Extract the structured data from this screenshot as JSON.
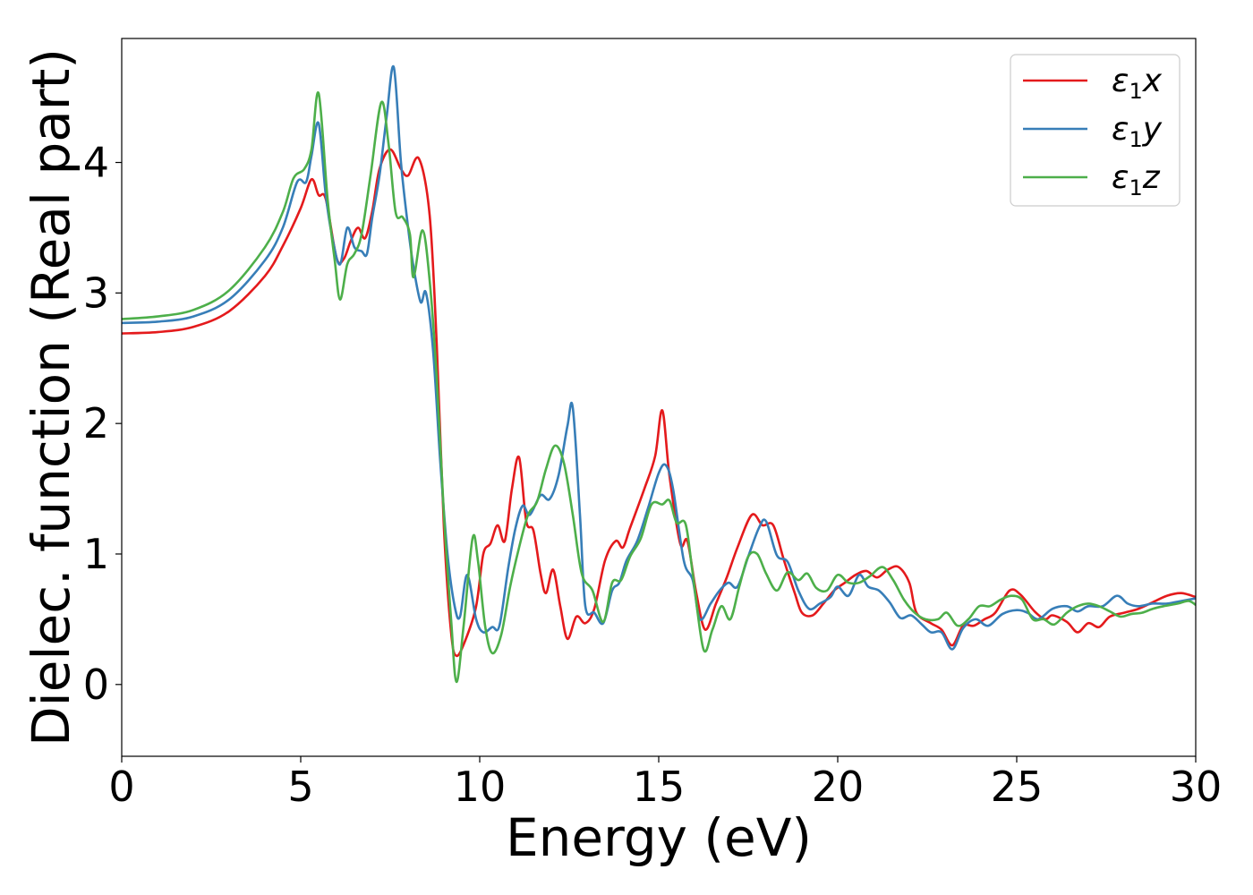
{
  "chart_data": {
    "type": "line",
    "title": "",
    "xlabel": "Energy (eV)",
    "ylabel": "Dielec. function (Real part)",
    "xlim": [
      0,
      30
    ],
    "ylim": [
      -0.55,
      4.95
    ],
    "xticks": [
      0,
      5,
      10,
      15,
      20,
      25,
      30
    ],
    "yticks": [
      0,
      1,
      2,
      3,
      4
    ],
    "grid": false,
    "legend": "top-right",
    "series": [
      {
        "name": "ε₁x",
        "legend_base": "ε",
        "legend_sub": "1",
        "legend_var": "x",
        "color": "#e41a1c",
        "points": [
          [
            0,
            2.69
          ],
          [
            1,
            2.7
          ],
          [
            2,
            2.74
          ],
          [
            3,
            2.86
          ],
          [
            4,
            3.13
          ],
          [
            4.5,
            3.36
          ],
          [
            5,
            3.65
          ],
          [
            5.3,
            3.87
          ],
          [
            5.5,
            3.75
          ],
          [
            5.7,
            3.72
          ],
          [
            6.0,
            3.27
          ],
          [
            6.2,
            3.26
          ],
          [
            6.4,
            3.4
          ],
          [
            6.6,
            3.5
          ],
          [
            6.8,
            3.42
          ],
          [
            7.0,
            3.63
          ],
          [
            7.2,
            3.95
          ],
          [
            7.5,
            4.1
          ],
          [
            7.8,
            3.95
          ],
          [
            8.0,
            3.9
          ],
          [
            8.3,
            4.03
          ],
          [
            8.6,
            3.6
          ],
          [
            8.8,
            2.6
          ],
          [
            9.0,
            1.2
          ],
          [
            9.2,
            0.4
          ],
          [
            9.35,
            0.22
          ],
          [
            9.6,
            0.34
          ],
          [
            9.9,
            0.6
          ],
          [
            10.1,
            1.0
          ],
          [
            10.3,
            1.08
          ],
          [
            10.5,
            1.22
          ],
          [
            10.7,
            1.1
          ],
          [
            10.9,
            1.5
          ],
          [
            11.1,
            1.74
          ],
          [
            11.3,
            1.25
          ],
          [
            11.5,
            1.18
          ],
          [
            11.7,
            0.85
          ],
          [
            11.85,
            0.7
          ],
          [
            12.05,
            0.88
          ],
          [
            12.25,
            0.6
          ],
          [
            12.45,
            0.35
          ],
          [
            12.7,
            0.52
          ],
          [
            12.95,
            0.47
          ],
          [
            13.2,
            0.58
          ],
          [
            13.5,
            0.95
          ],
          [
            13.8,
            1.1
          ],
          [
            14.0,
            1.05
          ],
          [
            14.2,
            1.2
          ],
          [
            14.6,
            1.5
          ],
          [
            14.9,
            1.75
          ],
          [
            15.1,
            2.1
          ],
          [
            15.3,
            1.6
          ],
          [
            15.6,
            1.08
          ],
          [
            15.8,
            1.1
          ],
          [
            16.05,
            0.7
          ],
          [
            16.3,
            0.42
          ],
          [
            16.6,
            0.62
          ],
          [
            16.9,
            0.82
          ],
          [
            17.2,
            1.05
          ],
          [
            17.6,
            1.3
          ],
          [
            17.9,
            1.22
          ],
          [
            18.2,
            1.22
          ],
          [
            18.5,
            0.95
          ],
          [
            18.8,
            0.7
          ],
          [
            19.0,
            0.55
          ],
          [
            19.3,
            0.53
          ],
          [
            19.6,
            0.62
          ],
          [
            19.9,
            0.72
          ],
          [
            20.2,
            0.78
          ],
          [
            20.5,
            0.84
          ],
          [
            20.8,
            0.87
          ],
          [
            21.1,
            0.82
          ],
          [
            21.4,
            0.88
          ],
          [
            21.7,
            0.9
          ],
          [
            22.0,
            0.78
          ],
          [
            22.2,
            0.55
          ],
          [
            22.6,
            0.47
          ],
          [
            22.9,
            0.42
          ],
          [
            23.2,
            0.3
          ],
          [
            23.5,
            0.45
          ],
          [
            23.8,
            0.45
          ],
          [
            24.1,
            0.5
          ],
          [
            24.4,
            0.55
          ],
          [
            24.8,
            0.72
          ],
          [
            25.1,
            0.69
          ],
          [
            25.5,
            0.56
          ],
          [
            25.8,
            0.5
          ],
          [
            26.0,
            0.53
          ],
          [
            26.4,
            0.48
          ],
          [
            26.7,
            0.4
          ],
          [
            27.0,
            0.47
          ],
          [
            27.3,
            0.44
          ],
          [
            27.6,
            0.52
          ],
          [
            28.0,
            0.55
          ],
          [
            28.4,
            0.58
          ],
          [
            28.8,
            0.63
          ],
          [
            29.2,
            0.68
          ],
          [
            29.6,
            0.7
          ],
          [
            30,
            0.67
          ]
        ]
      },
      {
        "name": "ε₁y",
        "legend_base": "ε",
        "legend_sub": "1",
        "legend_var": "y",
        "color": "#377eb8",
        "points": [
          [
            0,
            2.77
          ],
          [
            1,
            2.78
          ],
          [
            2,
            2.82
          ],
          [
            3,
            2.95
          ],
          [
            4,
            3.25
          ],
          [
            4.5,
            3.5
          ],
          [
            4.9,
            3.85
          ],
          [
            5.15,
            3.85
          ],
          [
            5.3,
            4.05
          ],
          [
            5.5,
            4.3
          ],
          [
            5.7,
            3.75
          ],
          [
            5.9,
            3.4
          ],
          [
            6.1,
            3.22
          ],
          [
            6.3,
            3.5
          ],
          [
            6.5,
            3.35
          ],
          [
            6.7,
            3.32
          ],
          [
            6.85,
            3.3
          ],
          [
            7.0,
            3.58
          ],
          [
            7.2,
            3.9
          ],
          [
            7.4,
            4.35
          ],
          [
            7.6,
            4.73
          ],
          [
            7.8,
            4.0
          ],
          [
            8.0,
            3.5
          ],
          [
            8.15,
            3.2
          ],
          [
            8.35,
            2.93
          ],
          [
            8.5,
            3.0
          ],
          [
            8.7,
            2.55
          ],
          [
            8.9,
            1.7
          ],
          [
            9.1,
            1.0
          ],
          [
            9.3,
            0.6
          ],
          [
            9.45,
            0.52
          ],
          [
            9.65,
            0.84
          ],
          [
            9.9,
            0.5
          ],
          [
            10.1,
            0.4
          ],
          [
            10.35,
            0.44
          ],
          [
            10.55,
            0.45
          ],
          [
            10.8,
            0.9
          ],
          [
            11.0,
            1.2
          ],
          [
            11.2,
            1.37
          ],
          [
            11.4,
            1.3
          ],
          [
            11.7,
            1.45
          ],
          [
            11.95,
            1.42
          ],
          [
            12.2,
            1.6
          ],
          [
            12.45,
            1.98
          ],
          [
            12.6,
            2.12
          ],
          [
            12.8,
            1.3
          ],
          [
            12.95,
            0.6
          ],
          [
            13.2,
            0.55
          ],
          [
            13.45,
            0.47
          ],
          [
            13.7,
            0.72
          ],
          [
            13.9,
            0.78
          ],
          [
            14.1,
            0.95
          ],
          [
            14.4,
            1.1
          ],
          [
            14.7,
            1.35
          ],
          [
            15.0,
            1.62
          ],
          [
            15.2,
            1.68
          ],
          [
            15.4,
            1.5
          ],
          [
            15.7,
            0.95
          ],
          [
            15.95,
            0.8
          ],
          [
            16.15,
            0.5
          ],
          [
            16.45,
            0.62
          ],
          [
            16.7,
            0.72
          ],
          [
            16.95,
            0.78
          ],
          [
            17.2,
            0.75
          ],
          [
            17.5,
            0.98
          ],
          [
            17.8,
            1.2
          ],
          [
            18.0,
            1.25
          ],
          [
            18.3,
            0.99
          ],
          [
            18.6,
            0.94
          ],
          [
            18.9,
            0.72
          ],
          [
            19.2,
            0.58
          ],
          [
            19.5,
            0.62
          ],
          [
            19.8,
            0.67
          ],
          [
            20.0,
            0.75
          ],
          [
            20.3,
            0.68
          ],
          [
            20.6,
            0.84
          ],
          [
            20.85,
            0.75
          ],
          [
            21.15,
            0.72
          ],
          [
            21.45,
            0.63
          ],
          [
            21.75,
            0.51
          ],
          [
            22.05,
            0.53
          ],
          [
            22.35,
            0.46
          ],
          [
            22.6,
            0.4
          ],
          [
            22.9,
            0.4
          ],
          [
            23.2,
            0.27
          ],
          [
            23.5,
            0.43
          ],
          [
            23.85,
            0.5
          ],
          [
            24.2,
            0.45
          ],
          [
            24.6,
            0.54
          ],
          [
            25.0,
            0.57
          ],
          [
            25.3,
            0.55
          ],
          [
            25.6,
            0.5
          ],
          [
            26.0,
            0.58
          ],
          [
            26.4,
            0.6
          ],
          [
            26.7,
            0.56
          ],
          [
            27.0,
            0.6
          ],
          [
            27.4,
            0.6
          ],
          [
            27.8,
            0.68
          ],
          [
            28.1,
            0.62
          ],
          [
            28.4,
            0.6
          ],
          [
            28.8,
            0.62
          ],
          [
            29.2,
            0.62
          ],
          [
            29.6,
            0.64
          ],
          [
            30,
            0.66
          ]
        ]
      },
      {
        "name": "ε₁z",
        "legend_base": "ε",
        "legend_sub": "1",
        "legend_var": "z",
        "color": "#4daf4a",
        "points": [
          [
            0,
            2.8
          ],
          [
            1,
            2.82
          ],
          [
            2,
            2.87
          ],
          [
            3,
            3.02
          ],
          [
            4,
            3.35
          ],
          [
            4.5,
            3.62
          ],
          [
            4.8,
            3.88
          ],
          [
            5.1,
            3.95
          ],
          [
            5.3,
            4.1
          ],
          [
            5.5,
            4.53
          ],
          [
            5.75,
            3.72
          ],
          [
            5.95,
            3.25
          ],
          [
            6.1,
            2.95
          ],
          [
            6.3,
            3.22
          ],
          [
            6.5,
            3.3
          ],
          [
            6.7,
            3.45
          ],
          [
            6.95,
            3.9
          ],
          [
            7.25,
            4.46
          ],
          [
            7.45,
            4.15
          ],
          [
            7.65,
            3.62
          ],
          [
            7.85,
            3.58
          ],
          [
            8.05,
            3.45
          ],
          [
            8.15,
            3.12
          ],
          [
            8.4,
            3.48
          ],
          [
            8.6,
            3.1
          ],
          [
            8.8,
            2.35
          ],
          [
            9.0,
            1.3
          ],
          [
            9.2,
            0.5
          ],
          [
            9.35,
            0.02
          ],
          [
            9.55,
            0.45
          ],
          [
            9.8,
            1.12
          ],
          [
            9.95,
            0.95
          ],
          [
            10.15,
            0.45
          ],
          [
            10.35,
            0.24
          ],
          [
            10.6,
            0.38
          ],
          [
            10.85,
            0.75
          ],
          [
            11.1,
            1.05
          ],
          [
            11.35,
            1.3
          ],
          [
            11.6,
            1.4
          ],
          [
            11.85,
            1.65
          ],
          [
            12.1,
            1.83
          ],
          [
            12.35,
            1.7
          ],
          [
            12.6,
            1.3
          ],
          [
            12.85,
            0.85
          ],
          [
            13.15,
            0.72
          ],
          [
            13.45,
            0.48
          ],
          [
            13.7,
            0.78
          ],
          [
            13.95,
            0.8
          ],
          [
            14.2,
            0.98
          ],
          [
            14.5,
            1.12
          ],
          [
            14.8,
            1.38
          ],
          [
            15.1,
            1.38
          ],
          [
            15.3,
            1.41
          ],
          [
            15.5,
            1.24
          ],
          [
            15.75,
            1.23
          ],
          [
            15.95,
            0.85
          ],
          [
            16.25,
            0.27
          ],
          [
            16.5,
            0.42
          ],
          [
            16.75,
            0.6
          ],
          [
            17.0,
            0.5
          ],
          [
            17.25,
            0.75
          ],
          [
            17.5,
            0.98
          ],
          [
            17.75,
            1.0
          ],
          [
            18.0,
            0.85
          ],
          [
            18.3,
            0.72
          ],
          [
            18.6,
            0.86
          ],
          [
            18.9,
            0.8
          ],
          [
            19.15,
            0.85
          ],
          [
            19.4,
            0.74
          ],
          [
            19.7,
            0.72
          ],
          [
            20.0,
            0.84
          ],
          [
            20.3,
            0.78
          ],
          [
            20.6,
            0.78
          ],
          [
            20.9,
            0.83
          ],
          [
            21.25,
            0.9
          ],
          [
            21.55,
            0.8
          ],
          [
            21.85,
            0.65
          ],
          [
            22.15,
            0.55
          ],
          [
            22.45,
            0.5
          ],
          [
            22.8,
            0.5
          ],
          [
            23.05,
            0.55
          ],
          [
            23.35,
            0.45
          ],
          [
            23.65,
            0.5
          ],
          [
            23.95,
            0.6
          ],
          [
            24.25,
            0.6
          ],
          [
            24.55,
            0.65
          ],
          [
            24.85,
            0.68
          ],
          [
            25.15,
            0.65
          ],
          [
            25.45,
            0.5
          ],
          [
            25.75,
            0.5
          ],
          [
            26.05,
            0.46
          ],
          [
            26.4,
            0.55
          ],
          [
            26.7,
            0.6
          ],
          [
            27.0,
            0.62
          ],
          [
            27.3,
            0.6
          ],
          [
            27.6,
            0.56
          ],
          [
            27.9,
            0.52
          ],
          [
            28.2,
            0.54
          ],
          [
            28.5,
            0.55
          ],
          [
            28.8,
            0.58
          ],
          [
            29.1,
            0.6
          ],
          [
            29.5,
            0.62
          ],
          [
            29.8,
            0.64
          ],
          [
            30,
            0.61
          ]
        ]
      }
    ]
  }
}
